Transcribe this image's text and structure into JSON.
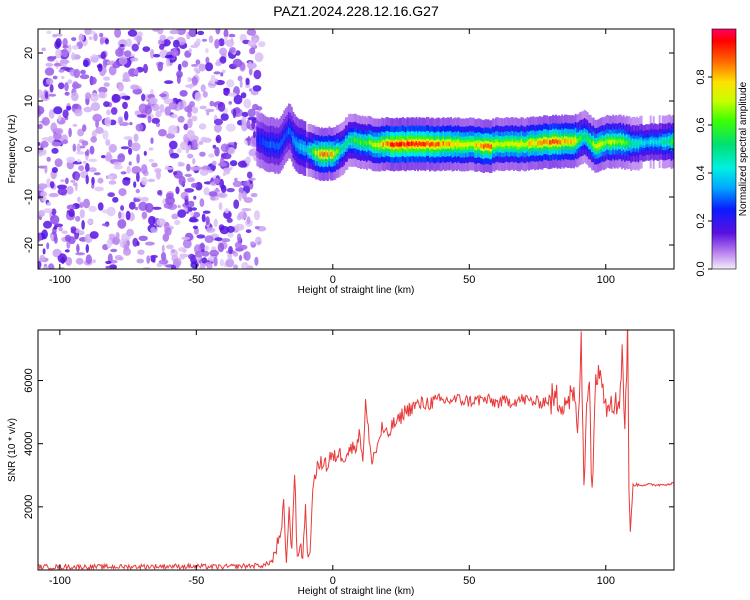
{
  "title": "PAZ1.2024.228.12.16.G27",
  "chart_data": [
    {
      "type": "heatmap",
      "xlabel": "Height of straight line (km)",
      "ylabel": "Frequency (Hz)",
      "xlim": [
        -108,
        125
      ],
      "ylim": [
        -25,
        25
      ],
      "xticks": [
        -100,
        -50,
        0,
        50,
        100
      ],
      "yticks": [
        -20,
        -10,
        0,
        10,
        20
      ],
      "colorbar": {
        "label": "Normalized spectral amplitude",
        "range": [
          0,
          1
        ],
        "ticks": [
          0.0,
          0.2,
          0.4,
          0.6,
          0.8
        ],
        "tick_labels": [
          "0.0",
          "0.2",
          "0.4",
          "0.6",
          "0.8"
        ]
      },
      "noise_region": {
        "x_range": [
          -108,
          -26
        ],
        "amplitude_range": [
          0.02,
          0.12
        ]
      },
      "ridge": {
        "x": [
          -28,
          -24,
          -20,
          -16,
          -14,
          -10,
          -5,
          0,
          3,
          6,
          10,
          15,
          20,
          30,
          40,
          50,
          57,
          60,
          70,
          80,
          88,
          92,
          96,
          100,
          105,
          110,
          115,
          120,
          125
        ],
        "frequency": [
          2,
          1,
          0.5,
          4,
          1,
          0,
          -1,
          -1,
          0,
          2,
          1.5,
          1,
          1,
          1,
          1,
          1,
          0.5,
          1,
          1,
          1.5,
          1.5,
          2.5,
          0.5,
          1.5,
          1.5,
          1,
          1.5,
          1.5,
          1.5
        ],
        "amplitude": [
          0.25,
          0.3,
          0.3,
          0.3,
          0.35,
          0.4,
          0.85,
          0.8,
          0.5,
          0.55,
          0.6,
          0.7,
          0.9,
          0.95,
          0.85,
          0.75,
          0.9,
          0.7,
          0.75,
          0.9,
          0.8,
          0.5,
          0.75,
          0.7,
          0.7,
          0.5,
          0.4,
          0.45,
          0.6
        ]
      }
    },
    {
      "type": "line",
      "xlabel": "Height of straight line (km)",
      "ylabel": "SNR (10 * v/v)",
      "xlim": [
        -108,
        125
      ],
      "ylim": [
        0,
        7600
      ],
      "xticks": [
        -100,
        -50,
        0,
        50,
        100
      ],
      "yticks": [
        2000,
        4000,
        6000
      ],
      "series": [
        {
          "color": "#e83a3a",
          "x": [
            -108,
            -80,
            -60,
            -40,
            -25,
            -22,
            -20,
            -19,
            -18,
            -17,
            -16,
            -15,
            -14,
            -13,
            -12,
            -11,
            -10,
            -9,
            -8,
            -7,
            -6,
            -5,
            -4,
            -3,
            -2,
            -1,
            0,
            2,
            4,
            6,
            8,
            10,
            11,
            12,
            14,
            16,
            18,
            20,
            22,
            24,
            26,
            28,
            30,
            35,
            40,
            45,
            50,
            55,
            60,
            65,
            70,
            75,
            80,
            82,
            85,
            88,
            90,
            91,
            92,
            93,
            94,
            95,
            96,
            98,
            100,
            102,
            104,
            105,
            106,
            107,
            108,
            108.5,
            109,
            110,
            112,
            115,
            120,
            125
          ],
          "values": [
            100,
            100,
            120,
            100,
            150,
            300,
            900,
            1000,
            2100,
            300,
            1800,
            700,
            3200,
            200,
            900,
            400,
            2000,
            200,
            1100,
            2900,
            3200,
            3300,
            3400,
            3500,
            3200,
            3600,
            3500,
            3700,
            3600,
            3800,
            3900,
            4300,
            3500,
            5300,
            3500,
            3800,
            4500,
            4200,
            4600,
            4700,
            5000,
            5100,
            5200,
            5300,
            5350,
            5400,
            5350,
            5400,
            5300,
            5350,
            5400,
            5300,
            5400,
            5400,
            5400,
            5500,
            4500,
            7300,
            2800,
            5500,
            5800,
            2500,
            5500,
            6800,
            5200,
            5600,
            5100,
            5500,
            7000,
            4500,
            7600,
            2800,
            1200,
            2700,
            2700,
            2700,
            2700,
            2750
          ]
        }
      ]
    }
  ]
}
